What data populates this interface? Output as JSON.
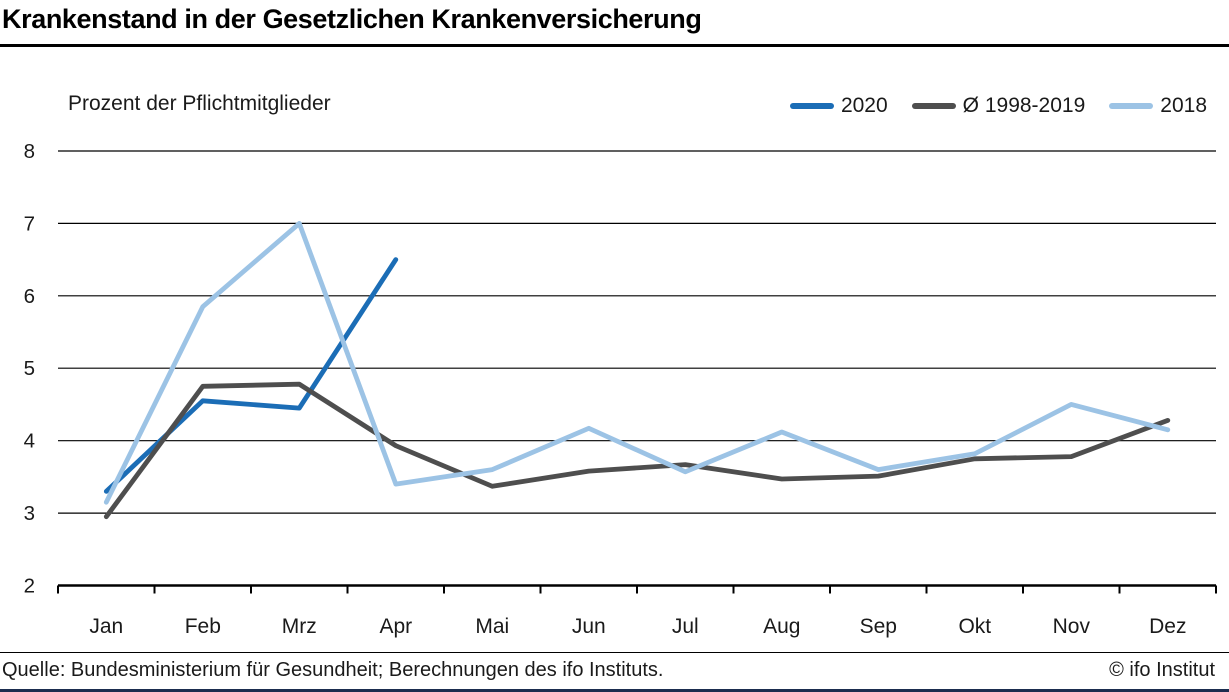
{
  "header": {
    "title": "Krankenstand in der Gesetzlichen Krankenversicherung"
  },
  "chart": {
    "subtitle": "Prozent der Pflichtmitglieder"
  },
  "footer": {
    "source": "Quelle: Bundesministerium für Gesundheit; Berechnungen des ifo Instituts.",
    "copyright": "© ifo Institut",
    "bar_color": "#1b2d4f"
  },
  "colors": {
    "axis": "#000000",
    "text": "#1a1a1a",
    "background": "#ffffff"
  },
  "chart_data": {
    "type": "line",
    "title": "Krankenstand in der Gesetzlichen Krankenversicherung",
    "subtitle": "Prozent der Pflichtmitglieder",
    "xlabel": "",
    "ylabel": "Prozent der Pflichtmitglieder",
    "categories": [
      "Jan",
      "Feb",
      "Mrz",
      "Apr",
      "Mai",
      "Jun",
      "Jul",
      "Aug",
      "Sep",
      "Okt",
      "Nov",
      "Dez"
    ],
    "series": [
      {
        "name": "2020",
        "color": "#1b6db6",
        "values": [
          3.3,
          4.55,
          4.45,
          6.5,
          null,
          null,
          null,
          null,
          null,
          null,
          null,
          null
        ]
      },
      {
        "name": "Ø 1998-2019",
        "color": "#4e4e4e",
        "values": [
          2.95,
          4.75,
          4.78,
          3.93,
          3.37,
          3.58,
          3.67,
          3.47,
          3.51,
          3.75,
          3.78,
          4.28
        ]
      },
      {
        "name": "2018",
        "color": "#9cc3e5",
        "values": [
          3.15,
          5.85,
          7.0,
          3.4,
          3.6,
          4.17,
          3.57,
          4.12,
          3.6,
          3.82,
          4.5,
          4.15
        ]
      }
    ],
    "ylim": [
      2,
      8
    ],
    "yticks": [
      2,
      3,
      4,
      5,
      6,
      7,
      8
    ],
    "grid": true,
    "legend_position": "top-right"
  }
}
